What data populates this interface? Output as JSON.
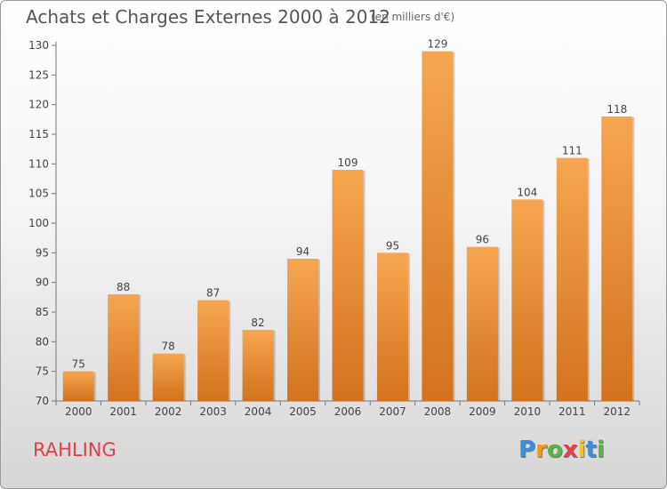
{
  "header": {
    "title": "Achats et Charges Externes 2000 à 2012",
    "subtitle": "(en milliers d'€)"
  },
  "footer": {
    "commune": "RAHLING",
    "logo_letters": [
      "P",
      "r",
      "o",
      "x",
      "i",
      "t",
      "i"
    ],
    "logo_colors": [
      "#3b8fd9",
      "#f09a1c",
      "#59b548",
      "#e83e4a",
      "#f0c51c",
      "#3b8fd9",
      "#59b548"
    ]
  },
  "colors": {
    "bar_light": "#f6a650",
    "bar_dark": "#d3721d",
    "text": "#555555",
    "commune": "#e0404a"
  },
  "chart_data": {
    "type": "bar",
    "categories": [
      "2000",
      "2001",
      "2002",
      "2003",
      "2004",
      "2005",
      "2006",
      "2007",
      "2008",
      "2009",
      "2010",
      "2011",
      "2012"
    ],
    "values": [
      75,
      88,
      78,
      87,
      82,
      94,
      109,
      95,
      129,
      96,
      104,
      111,
      118
    ],
    "data_labels": [
      "75",
      "88",
      "78",
      "87",
      "82",
      "94",
      "109",
      "95",
      "129",
      "96",
      "104",
      "111",
      "118"
    ],
    "yticks": [
      "70",
      "75",
      "80",
      "85",
      "90",
      "95",
      "100",
      "105",
      "110",
      "115",
      "120",
      "125",
      "130"
    ],
    "ylim": [
      70,
      130
    ],
    "grid": false,
    "legend": "none"
  }
}
